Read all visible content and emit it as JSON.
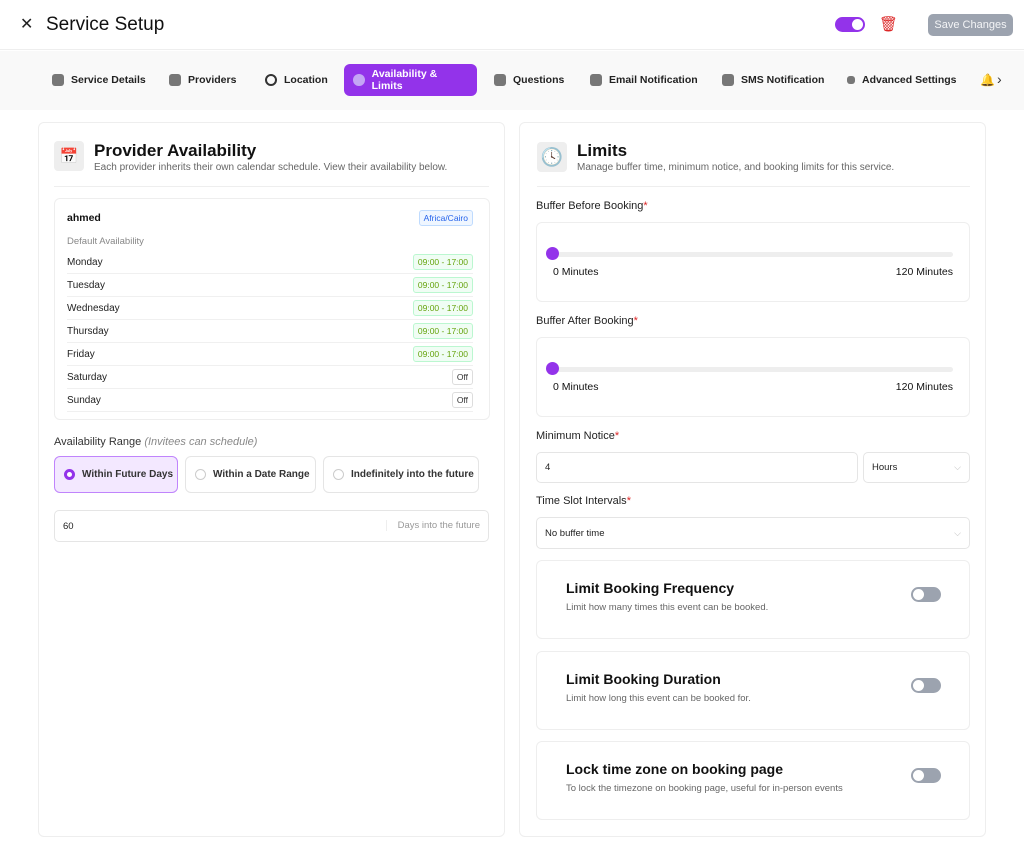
{
  "header": {
    "title": "Service Setup",
    "save_label": "Save Changes",
    "active_toggle": true
  },
  "tabs": [
    {
      "label": "Service Details",
      "icon": "calendar-icon"
    },
    {
      "label": "Providers",
      "icon": "users-icon"
    },
    {
      "label": "Location",
      "icon": "map-pin-icon"
    },
    {
      "label": "Availability & Limits",
      "icon": "clock-icon"
    },
    {
      "label": "Questions",
      "icon": "question-icon"
    },
    {
      "label": "Email Notification",
      "icon": "email-icon"
    },
    {
      "label": "SMS Notification",
      "icon": "sms-icon"
    },
    {
      "label": "Advanced Settings",
      "icon": "gear-icon"
    }
  ],
  "availability": {
    "title": "Provider Availability",
    "subtitle": "Each provider inherits their own calendar schedule. View their availability below.",
    "provider": {
      "name": "ahmed",
      "timezone": "Africa/Cairo",
      "schedule_label": "Default Availability",
      "days": [
        {
          "day": "Monday",
          "hours": "09:00 - 17:00"
        },
        {
          "day": "Tuesday",
          "hours": "09:00 - 17:00"
        },
        {
          "day": "Wednesday",
          "hours": "09:00 - 17:00"
        },
        {
          "day": "Thursday",
          "hours": "09:00 - 17:00"
        },
        {
          "day": "Friday",
          "hours": "09:00 - 17:00"
        },
        {
          "day": "Saturday",
          "hours": "Off"
        },
        {
          "day": "Sunday",
          "hours": "Off"
        }
      ]
    },
    "range_label": "Availability Range",
    "range_hint": "(Invitees can schedule)",
    "range_options": [
      "Within Future Days",
      "Within a Date Range",
      "Indefinitely into the future"
    ],
    "days_value": "60",
    "days_suffix": "Days into the future"
  },
  "limits": {
    "title": "Limits",
    "subtitle": "Manage buffer time, minimum notice, and booking limits for this service.",
    "buffer_before": {
      "label": "Buffer Before Booking",
      "value": 0,
      "min": "0 Minutes",
      "max": "120 Minutes"
    },
    "buffer_after": {
      "label": "Buffer After Booking",
      "value": 0,
      "min": "0 Minutes",
      "max": "120 Minutes"
    },
    "min_notice": {
      "label": "Minimum Notice",
      "value": "4",
      "unit": "Hours"
    },
    "time_slot": {
      "label": "Time Slot Intervals",
      "value": "No buffer time"
    },
    "toggles": [
      {
        "title": "Limit Booking Frequency",
        "desc": "Limit how many times this event can be booked.",
        "on": false
      },
      {
        "title": "Limit Booking Duration",
        "desc": "Limit how long this event can be booked for.",
        "on": false
      },
      {
        "title": "Lock time zone on booking page",
        "desc": "To lock the timezone on booking page, useful for in-person events",
        "on": false
      }
    ]
  }
}
